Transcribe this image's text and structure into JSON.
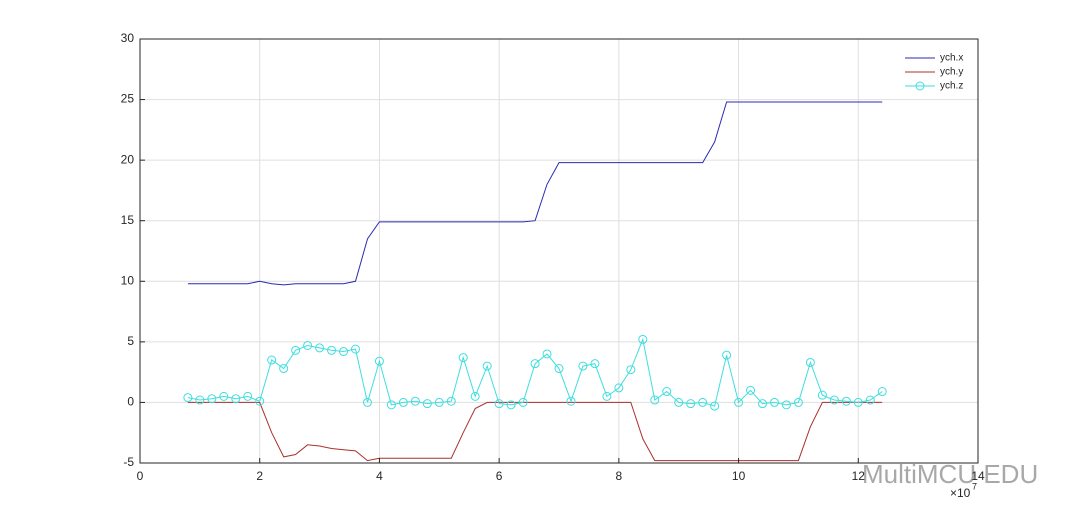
{
  "chart_data": {
    "type": "line",
    "x": [
      0.8,
      1.0,
      1.2,
      1.4,
      1.6,
      1.8,
      2.0,
      2.2,
      2.4,
      2.6,
      2.8,
      3.0,
      3.2,
      3.4,
      3.6,
      3.8,
      4.0,
      4.2,
      4.4,
      4.6,
      4.8,
      5.0,
      5.2,
      5.4,
      5.6,
      5.8,
      6.0,
      6.2,
      6.4,
      6.6,
      6.8,
      7.0,
      7.2,
      7.4,
      7.6,
      7.8,
      8.0,
      8.2,
      8.4,
      8.6,
      8.8,
      9.0,
      9.2,
      9.4,
      9.6,
      9.8,
      10.0,
      10.2,
      10.4,
      10.6,
      10.8,
      11.0,
      11.2,
      11.4,
      11.6,
      11.8,
      12.0,
      12.2,
      12.4
    ],
    "series": [
      {
        "name": "ych.x",
        "color": "#2b2bb0",
        "marker": false,
        "values": [
          9.8,
          9.8,
          9.8,
          9.8,
          9.8,
          9.8,
          10.0,
          9.8,
          9.7,
          9.8,
          9.8,
          9.8,
          9.8,
          9.8,
          10.0,
          13.5,
          14.9,
          14.9,
          14.9,
          14.9,
          14.9,
          14.9,
          14.9,
          14.9,
          14.9,
          14.9,
          14.9,
          14.9,
          14.9,
          15.0,
          18.0,
          19.8,
          19.8,
          19.8,
          19.8,
          19.8,
          19.8,
          19.8,
          19.8,
          19.8,
          19.8,
          19.8,
          19.8,
          19.8,
          21.5,
          24.8,
          24.8,
          24.8,
          24.8,
          24.8,
          24.8,
          24.8,
          24.8,
          24.8,
          24.8,
          24.8,
          24.8,
          24.8,
          24.8
        ]
      },
      {
        "name": "ych.y",
        "color": "#a8322b",
        "marker": false,
        "values": [
          0,
          0,
          0,
          0,
          0,
          0,
          0,
          -2.5,
          -4.5,
          -4.3,
          -3.5,
          -3.6,
          -3.8,
          -3.9,
          -4.0,
          -4.8,
          -4.6,
          -4.6,
          -4.6,
          -4.6,
          -4.6,
          -4.6,
          -4.6,
          -2.5,
          -0.5,
          0,
          0,
          0,
          0,
          0,
          0,
          0,
          0,
          0,
          0,
          0,
          0,
          0,
          -3.0,
          -4.8,
          -4.8,
          -4.8,
          -4.8,
          -4.8,
          -4.8,
          -4.8,
          -4.8,
          -4.8,
          -4.8,
          -4.8,
          -4.8,
          -4.8,
          -2.0,
          0,
          0,
          0,
          0,
          0,
          0
        ]
      },
      {
        "name": "ych.z",
        "color": "#3fdede",
        "marker": true,
        "values": [
          0.4,
          0.2,
          0.3,
          0.5,
          0.3,
          0.5,
          0.1,
          3.5,
          2.8,
          4.3,
          4.7,
          4.5,
          4.3,
          4.2,
          4.4,
          0.0,
          3.4,
          -0.2,
          0.0,
          0.1,
          -0.1,
          0.0,
          0.1,
          3.7,
          0.5,
          3.0,
          -0.1,
          -0.2,
          0.0,
          3.2,
          4.0,
          2.8,
          0.1,
          3.0,
          3.2,
          0.5,
          1.2,
          2.7,
          5.2,
          0.2,
          0.9,
          0.0,
          -0.1,
          0.0,
          -0.3,
          3.9,
          0.0,
          1.0,
          -0.1,
          0.0,
          -0.2,
          0.0,
          3.3,
          0.6,
          0.2,
          0.1,
          0.0,
          0.2,
          0.9
        ]
      }
    ],
    "xlim": [
      0,
      14
    ],
    "xticks": [
      0,
      2,
      4,
      6,
      8,
      10,
      12,
      14
    ],
    "ylim": [
      -5,
      30
    ],
    "yticks": [
      -5,
      0,
      5,
      10,
      15,
      20,
      25,
      30
    ],
    "x_exponent_base": "×10",
    "x_exponent": "7",
    "grid": true,
    "legend": "top-right",
    "watermark": "MultiMCU EDU"
  }
}
